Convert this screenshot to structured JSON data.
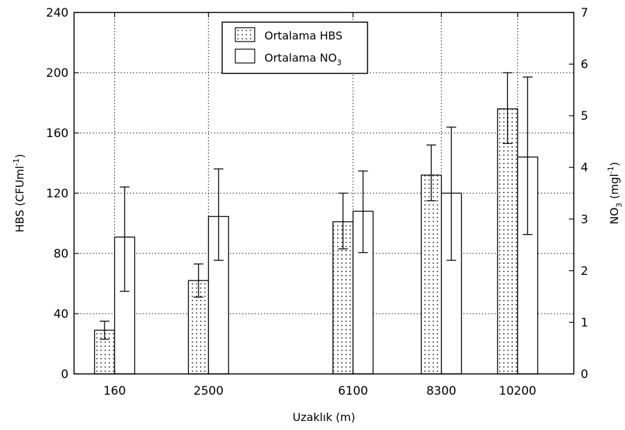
{
  "chart_data": {
    "type": "bar",
    "xlabel": "Uzaklık (m)",
    "x": [
      160,
      2500,
      6100,
      8300,
      10200
    ],
    "xlim": [
      -850,
      11600
    ],
    "y_left": {
      "label_main": "HBS (CFUml",
      "label_sup": "-1",
      "label_end": ")",
      "lim": [
        0,
        240
      ],
      "ticks": [
        "0",
        "40",
        "80",
        "120",
        "160",
        "200",
        "240"
      ]
    },
    "y_right": {
      "label_main": "NO",
      "label_sub": "3",
      "label_mid": "  (mgl",
      "label_sup": "-1",
      "label_end": ")",
      "lim": [
        0,
        7
      ],
      "ticks": [
        "0",
        "1",
        "2",
        "3",
        "4",
        "5",
        "6",
        "7"
      ]
    },
    "grid": true,
    "legend_position": "top-center",
    "legend": {
      "hbs_label": "Ortalama HBS",
      "no3_main": "Ortalama NO",
      "no3_sub": "3"
    },
    "series": [
      {
        "name": "Ortalama HBS",
        "axis": "left",
        "fill": "dotted",
        "values": [
          29,
          62,
          101,
          132,
          176
        ],
        "error_low": [
          23,
          51,
          83,
          115,
          153
        ],
        "error_high": [
          35,
          73,
          120,
          152,
          200
        ]
      },
      {
        "name": "Ortalama NO3",
        "axis": "right",
        "fill": "white",
        "values": [
          2.65,
          3.05,
          3.15,
          3.5,
          4.2
        ],
        "error_low": [
          1.6,
          2.2,
          2.35,
          2.2,
          2.7
        ],
        "error_high": [
          3.62,
          3.97,
          3.93,
          4.78,
          5.75
        ]
      }
    ],
    "colors": {
      "axis": "#000000",
      "grid": "#000000",
      "bar_edge": "#000000",
      "background": "#ffffff"
    }
  }
}
